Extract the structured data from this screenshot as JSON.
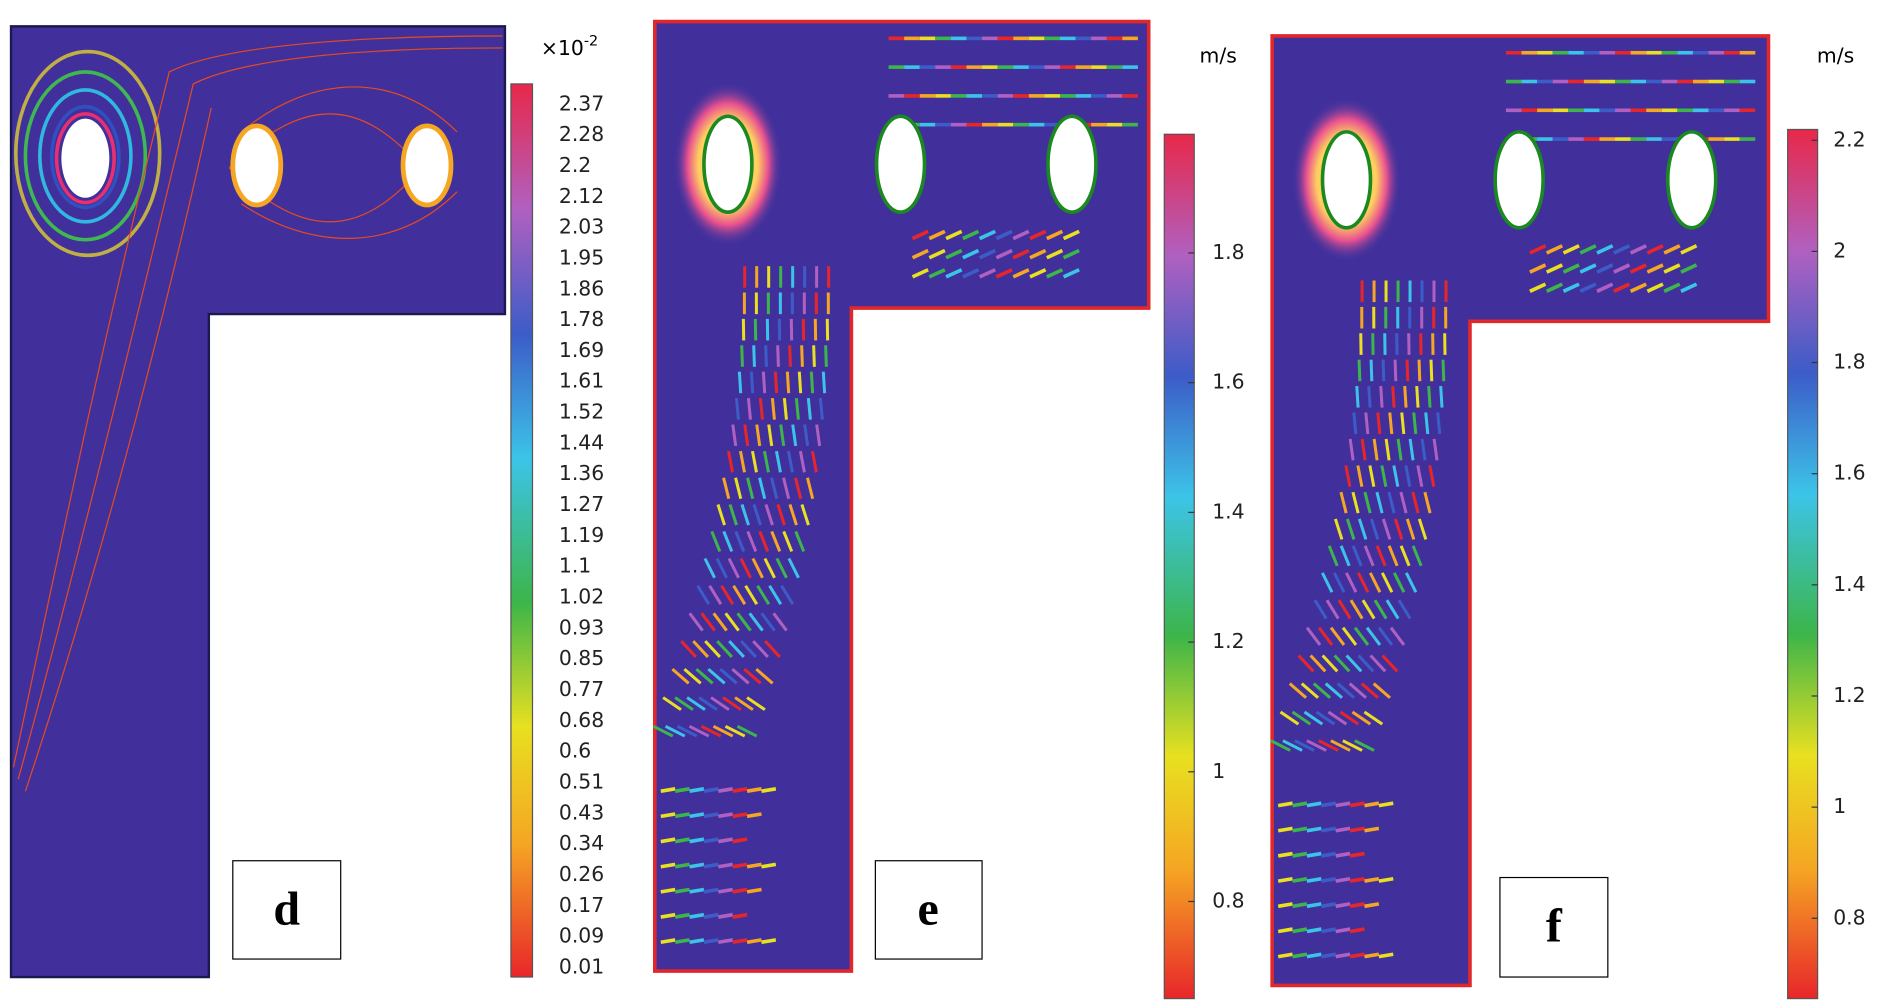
{
  "panels": [
    {
      "label": "d",
      "colorbar": {
        "multiplier": "×10",
        "exponent": "-2",
        "ticks": [
          "2.37",
          "2.28",
          "2.2",
          "2.12",
          "2.03",
          "1.95",
          "1.86",
          "1.78",
          "1.69",
          "1.61",
          "1.52",
          "1.44",
          "1.36",
          "1.27",
          "1.19",
          "1.1",
          "1.02",
          "0.93",
          "0.85",
          "0.77",
          "0.68",
          "0.6",
          "0.51",
          "0.43",
          "0.34",
          "0.26",
          "0.17",
          "0.09",
          "0.01"
        ]
      }
    },
    {
      "label": "e",
      "colorbar": {
        "unit": "m/s",
        "ticks": [
          "1.8",
          "1.6",
          "1.4",
          "1.2",
          "1",
          "0.8"
        ]
      }
    },
    {
      "label": "f",
      "colorbar": {
        "unit": "m/s",
        "ticks": [
          "2.2",
          "2",
          "1.8",
          "1.6",
          "1.4",
          "1.2",
          "1",
          "0.8"
        ]
      }
    }
  ]
}
